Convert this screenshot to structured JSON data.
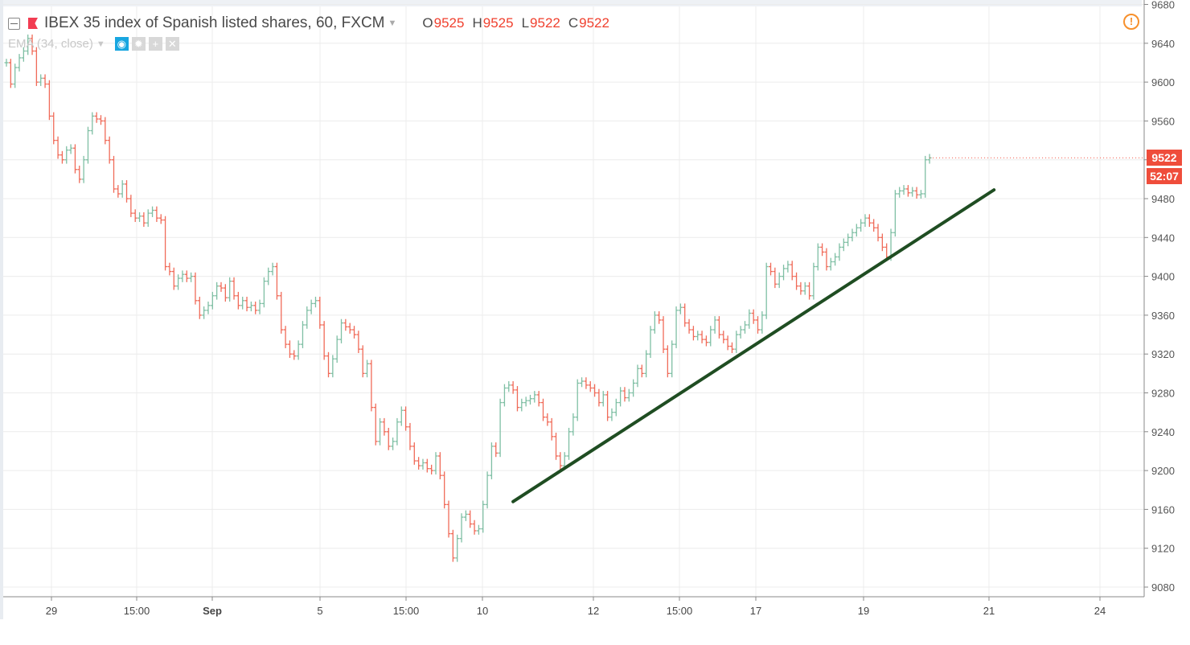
{
  "header": {
    "title": "IBEX 35 index of Spanish listed shares, 60, FXCM",
    "ohlc": [
      {
        "key": "O",
        "value": "9525"
      },
      {
        "key": "H",
        "value": "9525"
      },
      {
        "key": "L",
        "value": "9522"
      },
      {
        "key": "C",
        "value": "9522"
      }
    ],
    "indicator": "EMA (34, close)",
    "indicator_buttons": [
      "eye-icon",
      "gear-icon",
      "plus-icon",
      "close-icon"
    ]
  },
  "price_label": "9522",
  "countdown_label": "52:07",
  "colors": {
    "up": "#7fbfa4",
    "down": "#f06b59",
    "trendline": "#1f4d22",
    "accent": "#ef4d3b",
    "warning": "#f7902c"
  },
  "chart_data": {
    "type": "ohlc-bar",
    "interval": "60",
    "ylim": [
      9080,
      9680
    ],
    "yticks": [
      9080,
      9120,
      9160,
      9200,
      9240,
      9280,
      9320,
      9360,
      9400,
      9440,
      9480,
      9520,
      9560,
      9600,
      9640,
      9680
    ],
    "xtick_labels": [
      "29",
      "15:00",
      "Sep",
      "5",
      "15:00",
      "10",
      "12",
      "15:00",
      "17",
      "19",
      "21",
      "24"
    ],
    "grid": true,
    "last_price": 9522,
    "closes": [
      9620,
      9598,
      9615,
      9625,
      9632,
      9645,
      9632,
      9600,
      9604,
      9598,
      9565,
      9540,
      9525,
      9520,
      9530,
      9532,
      9510,
      9500,
      9520,
      9550,
      9565,
      9562,
      9560,
      9540,
      9520,
      9490,
      9485,
      9495,
      9480,
      9465,
      9460,
      9462,
      9455,
      9465,
      9468,
      9460,
      9458,
      9410,
      9405,
      9390,
      9398,
      9402,
      9398,
      9400,
      9375,
      9360,
      9365,
      9370,
      9380,
      9390,
      9388,
      9378,
      9395,
      9380,
      9370,
      9375,
      9368,
      9370,
      9365,
      9372,
      9395,
      9405,
      9410,
      9380,
      9345,
      9330,
      9320,
      9318,
      9330,
      9350,
      9365,
      9372,
      9375,
      9350,
      9318,
      9300,
      9315,
      9335,
      9352,
      9348,
      9345,
      9340,
      9325,
      9300,
      9310,
      9265,
      9230,
      9250,
      9240,
      9225,
      9230,
      9250,
      9262,
      9245,
      9225,
      9210,
      9205,
      9208,
      9202,
      9200,
      9215,
      9195,
      9165,
      9135,
      9110,
      9130,
      9152,
      9155,
      9145,
      9138,
      9140,
      9165,
      9195,
      9225,
      9218,
      9270,
      9285,
      9288,
      9283,
      9265,
      9270,
      9272,
      9274,
      9278,
      9270,
      9255,
      9250,
      9235,
      9215,
      9205,
      9215,
      9240,
      9255,
      9290,
      9292,
      9288,
      9285,
      9280,
      9270,
      9278,
      9255,
      9260,
      9270,
      9282,
      9275,
      9280,
      9290,
      9305,
      9300,
      9320,
      9345,
      9360,
      9355,
      9325,
      9300,
      9330,
      9365,
      9368,
      9352,
      9345,
      9338,
      9340,
      9335,
      9332,
      9345,
      9355,
      9340,
      9335,
      9328,
      9325,
      9340,
      9345,
      9350,
      9362,
      9355,
      9345,
      9360,
      9410,
      9405,
      9392,
      9400,
      9408,
      9412,
      9400,
      9390,
      9385,
      9390,
      9380,
      9410,
      9430,
      9425,
      9410,
      9415,
      9420,
      9430,
      9435,
      9440,
      9445,
      9450,
      9455,
      9460,
      9455,
      9450,
      9440,
      9430,
      9420,
      9445,
      9485,
      9488,
      9490,
      9486,
      9488,
      9484,
      9485,
      9520,
      9522
    ],
    "trendline": {
      "start": {
        "bar": 118,
        "price": 9168
      },
      "end": {
        "bar": 230,
        "price": 9489
      }
    }
  }
}
